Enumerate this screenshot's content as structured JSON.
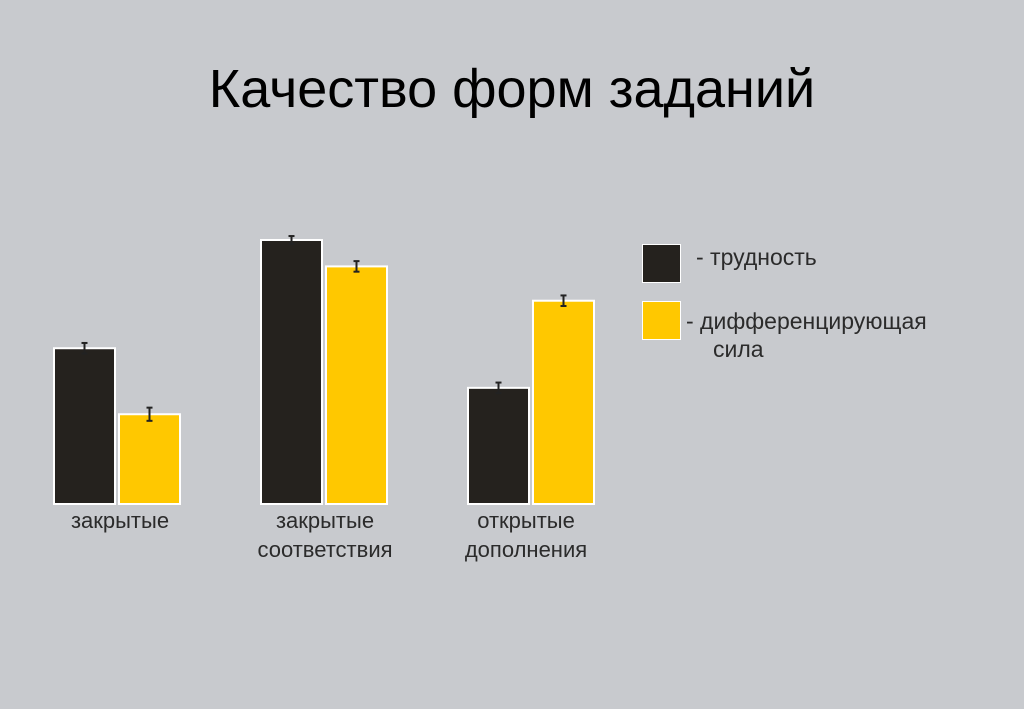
{
  "title": "Качество форм заданий",
  "colors": {
    "background": "#c8cace",
    "difficulty": "#25221e",
    "discrimination": "#ffc800",
    "bar_border": "#ffffff"
  },
  "chart_data": {
    "type": "bar",
    "title": "Качество форм заданий",
    "categories": [
      [
        "закрытые"
      ],
      [
        "закрытые",
        "соответствия"
      ],
      [
        "открытые",
        "дополнения"
      ]
    ],
    "series": [
      {
        "name": "- трудность",
        "color": "#25221e",
        "values": [
          0.59,
          1.0,
          0.44
        ],
        "error": [
          0.02,
          0.015,
          0.02
        ]
      },
      {
        "name": "- дифференцирующая сила",
        "color": "#ffc800",
        "values": [
          0.34,
          0.9,
          0.77
        ],
        "error": [
          0.025,
          0.02,
          0.02
        ]
      }
    ],
    "ylim": [
      0,
      1.05
    ],
    "axes_visible": false,
    "grid": false,
    "legend": "right"
  },
  "legend": [
    {
      "line1": "- трудность",
      "line2": ""
    },
    {
      "line1": "- дифференцирующая",
      "line2": "сила"
    }
  ]
}
